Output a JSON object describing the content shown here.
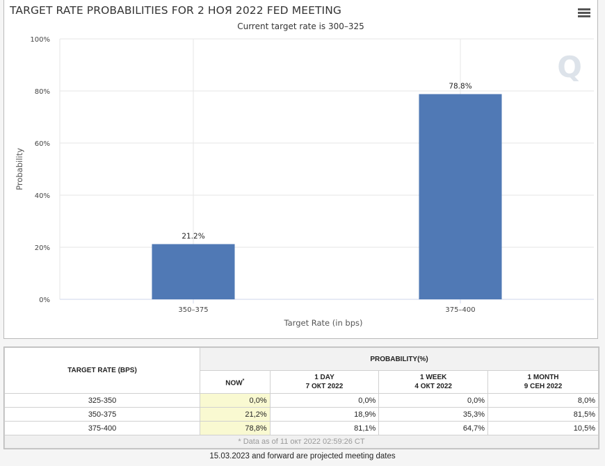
{
  "chart_title": "TARGET RATE PROBABILITIES FOR 2 НОЯ 2022 FED MEETING",
  "chart_subtitle": "Current target rate is 300–325",
  "icons": {
    "menu": "hamburger-menu-icon",
    "watermark": "q-logo-icon"
  },
  "watermark_text": "Q",
  "chart_data": {
    "type": "bar",
    "title": "TARGET RATE PROBABILITIES FOR 2 НОЯ 2022 FED MEETING",
    "subtitle": "Current target rate is 300–325",
    "categories": [
      "350–375",
      "375–400"
    ],
    "values": [
      21.2,
      78.8
    ],
    "data_labels": [
      "21.2%",
      "78.8%"
    ],
    "xlabel": "Target Rate (in bps)",
    "ylabel": "Probability",
    "ylim": [
      0,
      100
    ],
    "yticks": [
      0,
      20,
      40,
      60,
      80,
      100
    ],
    "ytick_labels": [
      "0%",
      "20%",
      "40%",
      "60%",
      "80%",
      "100%"
    ],
    "grid": true,
    "bar_color": "#5079b5"
  },
  "table": {
    "header_rate": "TARGET RATE (BPS)",
    "header_probability": "PROBABILITY(%)",
    "columns": [
      {
        "line1": "NOW",
        "line2": "",
        "marker": "*"
      },
      {
        "line1": "1 DAY",
        "line2": "7 ОКТ 2022"
      },
      {
        "line1": "1 WEEK",
        "line2": "4 ОКТ 2022"
      },
      {
        "line1": "1 MONTH",
        "line2": "9 СЕН 2022"
      }
    ],
    "rows": [
      {
        "rate": "325-350",
        "now": "0,0%",
        "day": "0,0%",
        "week": "0,0%",
        "month": "8,0%"
      },
      {
        "rate": "350-375",
        "now": "21,2%",
        "day": "18,9%",
        "week": "35,3%",
        "month": "81,5%"
      },
      {
        "rate": "375-400",
        "now": "78,8%",
        "day": "81,1%",
        "week": "64,7%",
        "month": "10,5%"
      }
    ],
    "footnote": "* Data as of 11 окт 2022 02:59:26 CT"
  },
  "bottom_note": "15.03.2023 and forward are projected meeting dates"
}
